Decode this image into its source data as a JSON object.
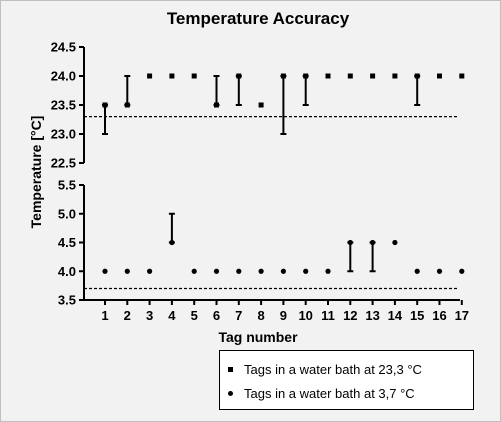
{
  "chart_data": {
    "type": "scatter",
    "title": "Temperature Accuracy",
    "xlabel": "Tag number",
    "ylabel": "Temperature [°C]",
    "x": [
      1,
      2,
      3,
      4,
      5,
      6,
      7,
      8,
      9,
      10,
      11,
      12,
      13,
      14,
      15,
      16,
      17
    ],
    "x_ticks": [
      "1",
      "2",
      "3",
      "4",
      "5",
      "6",
      "7",
      "8",
      "9",
      "10",
      "11",
      "12",
      "13",
      "14",
      "15",
      "16",
      "17"
    ],
    "panels": [
      {
        "ylim": [
          22.5,
          24.5
        ],
        "y_ticks": [
          "22.5",
          "23.0",
          "23.5",
          "24.0",
          "24.5"
        ],
        "reference_line": 23.3,
        "series": {
          "name": "Tags in a water bath at 23,3 °C",
          "marker": "square",
          "values": [
            23.5,
            23.5,
            24.0,
            24.0,
            24.0,
            23.5,
            24.0,
            23.5,
            24.0,
            24.0,
            24.0,
            24.0,
            24.0,
            24.0,
            24.0,
            24.0,
            24.0
          ],
          "range_low": [
            23.0,
            23.5,
            24.0,
            24.0,
            24.0,
            23.5,
            23.5,
            23.5,
            23.0,
            23.5,
            24.0,
            24.0,
            24.0,
            24.0,
            23.5,
            24.0,
            24.0
          ],
          "range_high": [
            23.5,
            24.0,
            24.0,
            24.0,
            24.0,
            24.0,
            24.0,
            23.5,
            24.0,
            24.0,
            24.0,
            24.0,
            24.0,
            24.0,
            24.0,
            24.0,
            24.0
          ]
        }
      },
      {
        "ylim": [
          3.5,
          5.5
        ],
        "y_ticks": [
          "3.5",
          "4.0",
          "4.5",
          "5.0",
          "5.5"
        ],
        "reference_line": 3.7,
        "series": {
          "name": "Tags in a water bath at 3,7 °C",
          "marker": "circle",
          "values": [
            4.0,
            4.0,
            4.0,
            4.5,
            4.0,
            4.0,
            4.0,
            4.0,
            4.0,
            4.0,
            4.0,
            4.5,
            4.5,
            4.5,
            4.0,
            4.0,
            4.0
          ],
          "range_low": [
            4.0,
            4.0,
            4.0,
            4.5,
            4.0,
            4.0,
            4.0,
            4.0,
            4.0,
            4.0,
            4.0,
            4.0,
            4.0,
            4.5,
            4.0,
            4.0,
            4.0
          ],
          "range_high": [
            4.0,
            4.0,
            4.0,
            5.0,
            4.0,
            4.0,
            4.0,
            4.0,
            4.0,
            4.0,
            4.0,
            4.5,
            4.5,
            4.5,
            4.0,
            4.0,
            4.0
          ]
        }
      }
    ],
    "legend": {
      "position": "bottom-right",
      "entries": [
        "Tags in a water bath at 23,3 °C",
        "Tags in a water bath at 3,7 °C"
      ]
    }
  }
}
